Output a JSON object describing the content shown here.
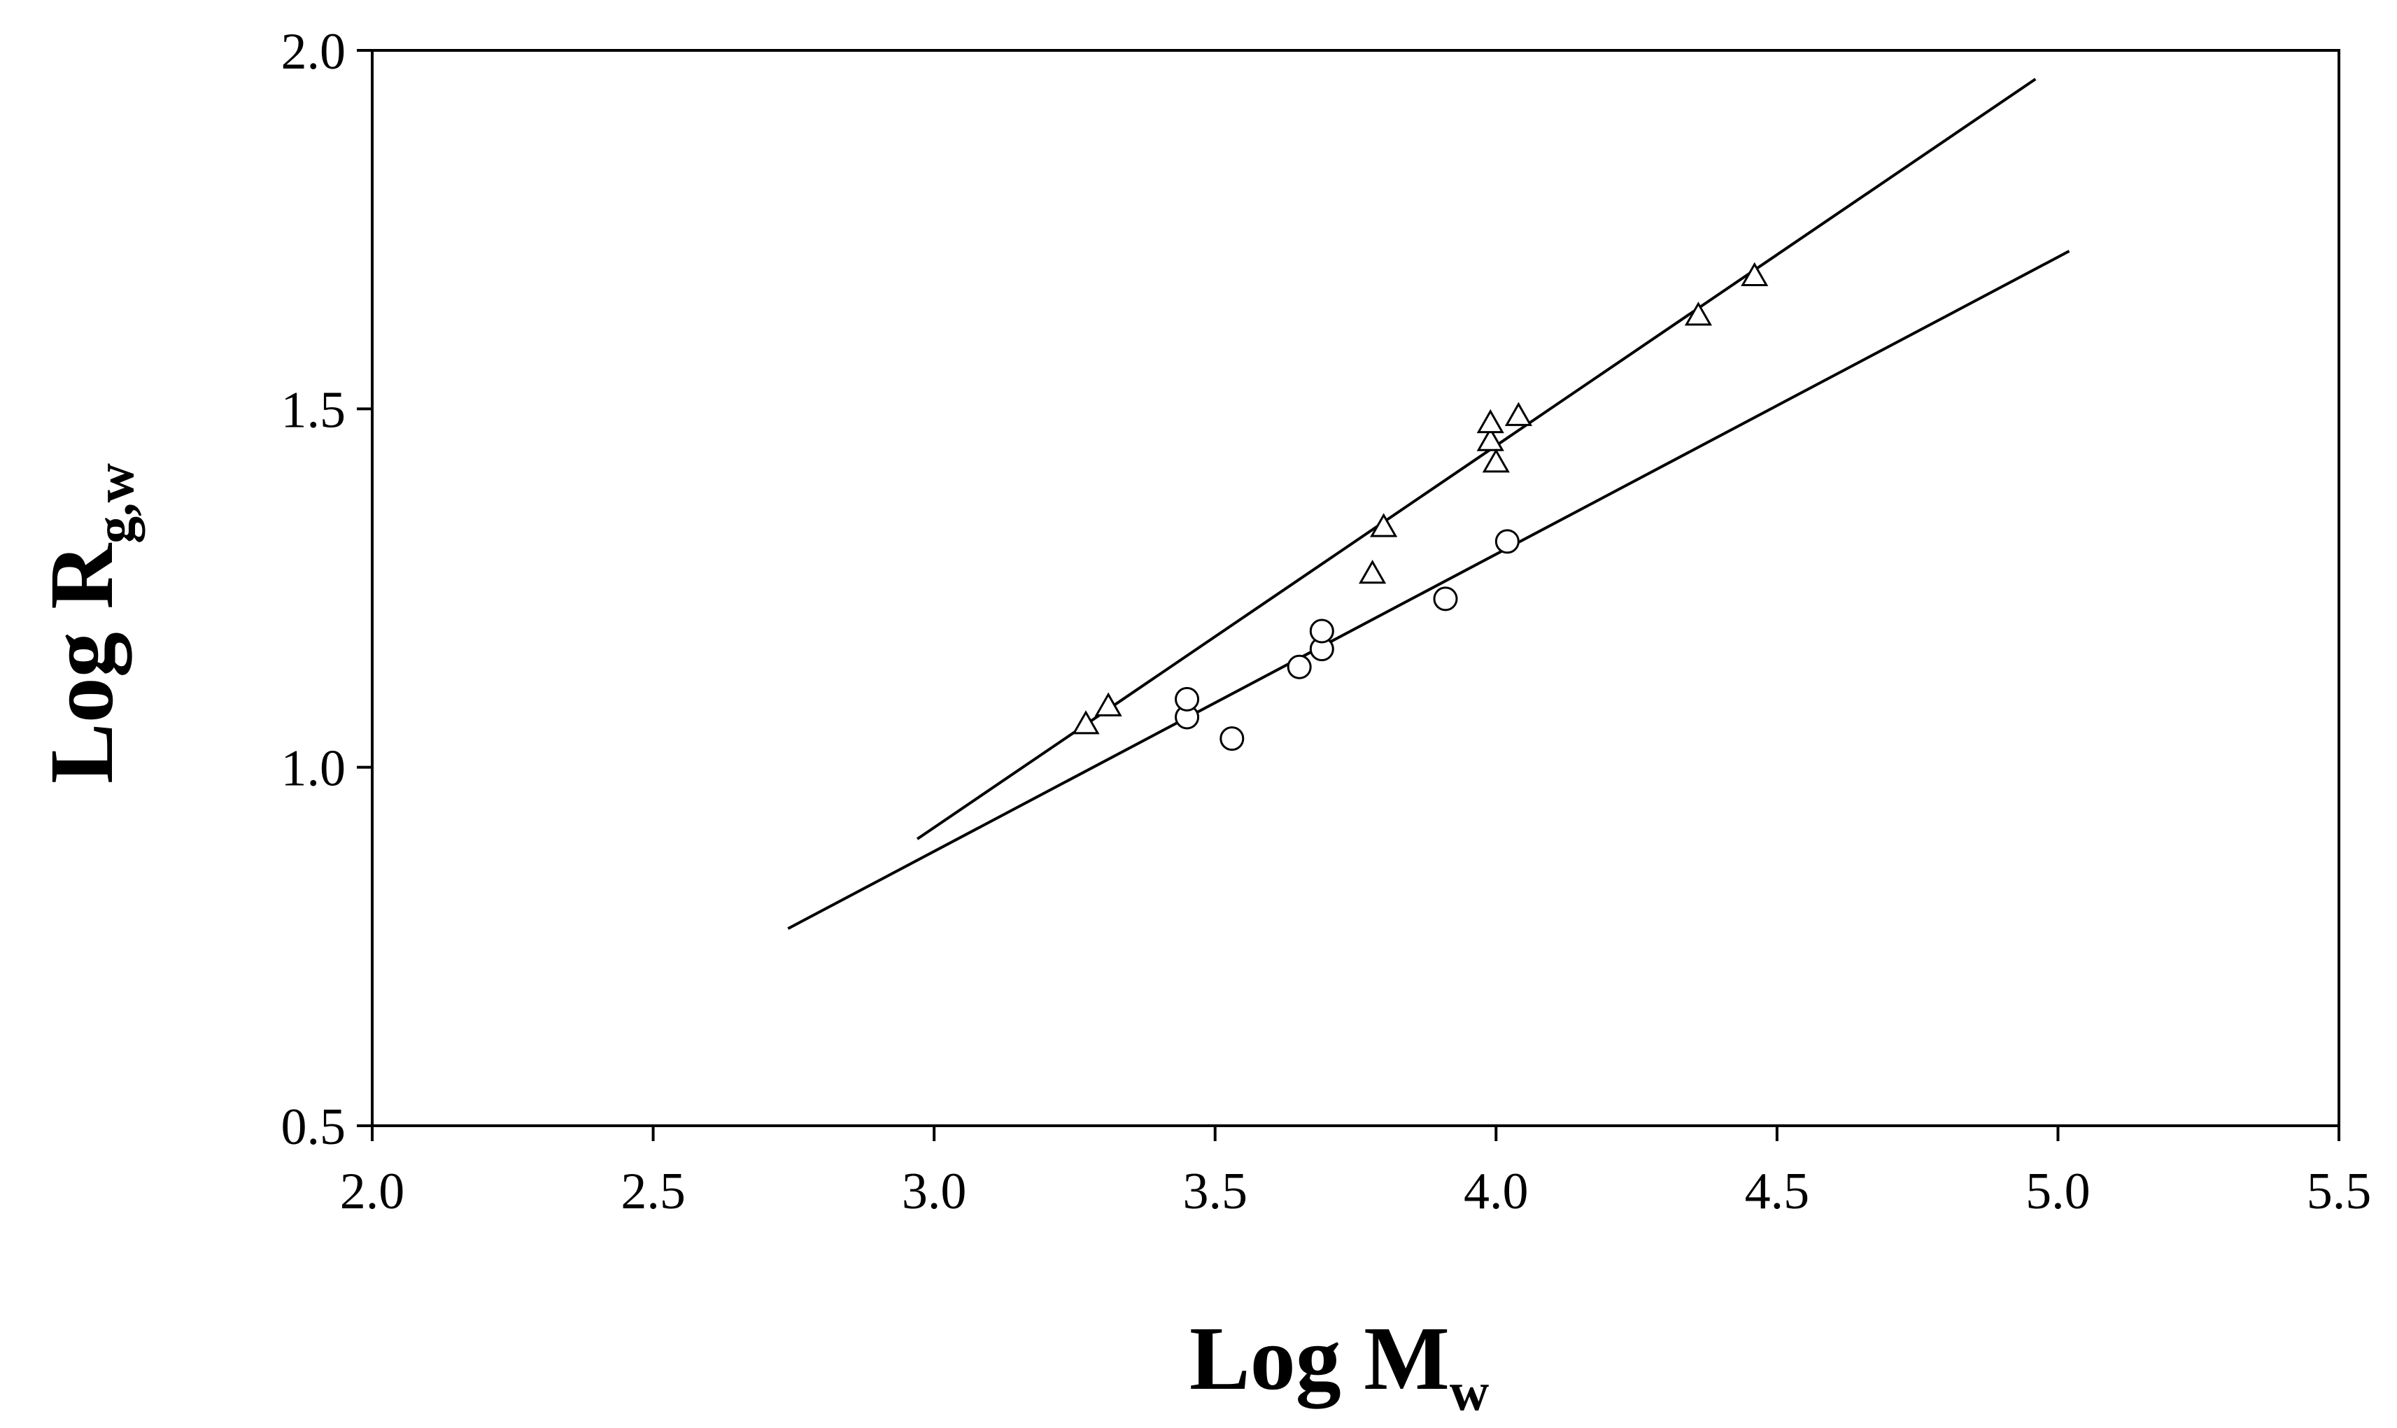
{
  "chart_data": {
    "type": "scatter",
    "title": "",
    "xlabel": {
      "main": "Log M",
      "sub": "w"
    },
    "ylabel": {
      "main": "Log R",
      "sub": "g,w"
    },
    "xlim": [
      2.0,
      5.5
    ],
    "ylim": [
      0.5,
      2.0
    ],
    "xticks": [
      "2.0",
      "2.5",
      "3.0",
      "3.5",
      "4.0",
      "4.5",
      "5.0",
      "5.5"
    ],
    "yticks": [
      "0.5",
      "1.0",
      "1.5",
      "2.0"
    ],
    "grid": false,
    "legend": "none",
    "series": [
      {
        "marker": "triangle",
        "points": [
          [
            3.27,
            1.06
          ],
          [
            3.31,
            1.085
          ],
          [
            3.78,
            1.27
          ],
          [
            3.8,
            1.335
          ],
          [
            3.99,
            1.455
          ],
          [
            3.99,
            1.48
          ],
          [
            4.0,
            1.425
          ],
          [
            4.04,
            1.49
          ],
          [
            4.36,
            1.63
          ],
          [
            4.46,
            1.685
          ]
        ],
        "fit": [
          [
            2.97,
            0.9
          ],
          [
            4.96,
            1.96
          ]
        ]
      },
      {
        "marker": "circle",
        "points": [
          [
            3.45,
            1.07
          ],
          [
            3.45,
            1.095
          ],
          [
            3.53,
            1.04
          ],
          [
            3.65,
            1.14
          ],
          [
            3.69,
            1.165
          ],
          [
            3.69,
            1.19
          ],
          [
            3.91,
            1.235
          ],
          [
            4.02,
            1.315
          ]
        ],
        "fit": [
          [
            2.74,
            0.775
          ],
          [
            5.02,
            1.72
          ]
        ]
      }
    ]
  }
}
